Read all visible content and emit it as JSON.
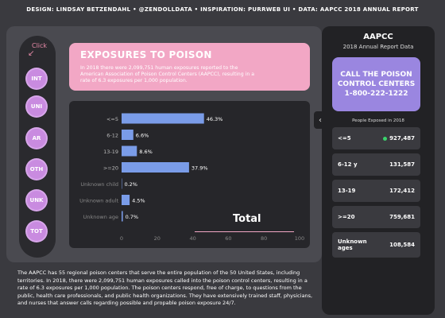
{
  "credits": "DESIGN: LINDSAY BETZENDAHL  •  @ZENDOLLDATA  •  INSPIRATION: PURRWEB UI  •  DATA: AAPCC 2018 ANNUAL REPORT",
  "nav": {
    "hint": "Click",
    "items": [
      {
        "label": "INT"
      },
      {
        "label": "UNI"
      },
      {
        "label": "AR"
      },
      {
        "label": "OTH"
      },
      {
        "label": "UNK"
      },
      {
        "label": "TOT"
      }
    ]
  },
  "header": {
    "title": "EXPOSURES TO POISON",
    "description": "In 2018 there were 2,099,751 human exposures reported to the American Association of Poison Control Centers (AAPCC), resulting in a rate of 6.3 exposures per 1,000 population."
  },
  "chart_data": {
    "type": "bar",
    "orientation": "horizontal",
    "categories": [
      "<=5",
      "6-12",
      "13-19",
      ">=20",
      "Unknown child",
      "Unknown adult",
      "Unknown age"
    ],
    "values": [
      46.3,
      6.6,
      8.6,
      37.9,
      0.2,
      4.5,
      0.7
    ],
    "value_labels": [
      "46.3%",
      "6.6%",
      "8.6%",
      "37.9%",
      "0.2%",
      "4.5%",
      "0.7%"
    ],
    "xlim": [
      0,
      100
    ],
    "xticks": [
      "0",
      "20",
      "40",
      "60",
      "80",
      "100"
    ],
    "title": "Total",
    "bar_color": "#7a9ce8",
    "grid": false
  },
  "panel": {
    "title": "AAPCC",
    "subtitle": "2018 Annual Report Data",
    "call_line1": "CALL THE POISON",
    "call_line2": "CONTROL CENTERS",
    "call_line3": "1-800-222-1222",
    "people_title": "People Exposed in 2018",
    "stats": [
      {
        "label": "<=5",
        "value": "927,487",
        "highlight": true
      },
      {
        "label": "6-12 y",
        "value": "131,587",
        "highlight": false
      },
      {
        "label": "13-19",
        "value": "172,412",
        "highlight": false
      },
      {
        "label": ">=20",
        "value": "759,681",
        "highlight": false
      },
      {
        "label": "Unknown ages",
        "value": "108,584",
        "highlight": false
      }
    ]
  },
  "footer": "The AAPCC has 55 regional poison centers that serve the entire population of the 50 United States, including territories. In 2018, there were 2,099,751 human exposures called into the poison control centers, resulting in a rate of 6.3 exposures per 1,000 population. The poison centers respond, free of charge, to questions from the public, health care professionals, and public health organizations. They have extensively trained staff, physicians, and nurses that answer calls regarding possible and propable poison exposure 24/7.",
  "colors": {
    "accent_pink": "#f2a7c5",
    "accent_purple": "#9a86e0",
    "nav_purple": "#c98be0",
    "highlight_green": "#3ad36c"
  }
}
